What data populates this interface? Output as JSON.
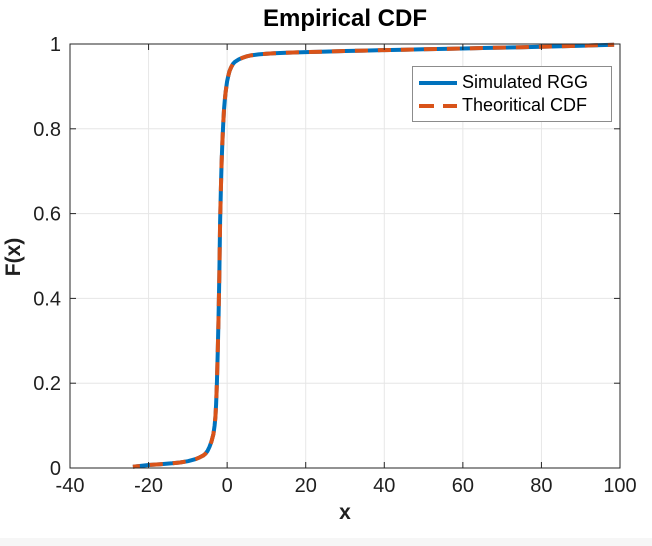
{
  "chart_data": {
    "type": "line",
    "title": "Empirical CDF",
    "xlabel": "x",
    "ylabel": "F(x)",
    "xlim": [
      -40,
      100
    ],
    "ylim": [
      0,
      1
    ],
    "x_ticks": [
      -40,
      -20,
      0,
      20,
      40,
      60,
      80,
      100
    ],
    "y_ticks": [
      0,
      0.2,
      0.4,
      0.6,
      0.8,
      1
    ],
    "grid": true,
    "legend_position": "upper right",
    "colors": {
      "axis": "#262626",
      "grid": "#e6e6e6",
      "tick_label": "#1f1f1f"
    },
    "series": [
      {
        "name": "Simulated RGG",
        "color": "#0072BD",
        "style": "solid",
        "x": [
          -24,
          -22,
          -20,
          -17,
          -14,
          -12,
          -10,
          -8,
          -7,
          -6,
          -5.5,
          -5,
          -4.5,
          -4,
          -3.5,
          -3.2,
          -3,
          -2.8,
          -2.6,
          -2.4,
          -2.2,
          -2,
          -1.8,
          -1.6,
          -1.4,
          -1.2,
          -1,
          -0.8,
          -0.6,
          -0.4,
          -0.2,
          0,
          0.3,
          0.6,
          1,
          1.5,
          2,
          3,
          4,
          5,
          6,
          8,
          10,
          12,
          15,
          20,
          25,
          30,
          35,
          40,
          45,
          50,
          55,
          60,
          65,
          70,
          75,
          80,
          85,
          90,
          95,
          98.5
        ],
        "y": [
          0.003,
          0.005,
          0.007,
          0.009,
          0.011,
          0.013,
          0.016,
          0.021,
          0.025,
          0.03,
          0.034,
          0.04,
          0.05,
          0.062,
          0.08,
          0.1,
          0.12,
          0.15,
          0.2,
          0.27,
          0.35,
          0.45,
          0.58,
          0.66,
          0.72,
          0.77,
          0.81,
          0.845,
          0.868,
          0.886,
          0.9,
          0.912,
          0.925,
          0.936,
          0.945,
          0.953,
          0.958,
          0.964,
          0.968,
          0.971,
          0.973,
          0.9755,
          0.977,
          0.978,
          0.9795,
          0.981,
          0.982,
          0.9835,
          0.9845,
          0.9855,
          0.9865,
          0.9875,
          0.9885,
          0.9895,
          0.9905,
          0.9915,
          0.9925,
          0.9935,
          0.9945,
          0.996,
          0.9975,
          0.998
        ]
      },
      {
        "name": "Theoritical CDF",
        "color": "#D95319",
        "style": "dashed",
        "x": [
          -24,
          -22,
          -20,
          -17,
          -14,
          -12,
          -10,
          -8,
          -7,
          -6,
          -5.5,
          -5,
          -4.5,
          -4,
          -3.5,
          -3.2,
          -3,
          -2.8,
          -2.6,
          -2.4,
          -2.2,
          -2,
          -1.8,
          -1.6,
          -1.4,
          -1.2,
          -1,
          -0.8,
          -0.6,
          -0.4,
          -0.2,
          0,
          0.3,
          0.6,
          1,
          1.5,
          2,
          3,
          4,
          5,
          6,
          8,
          10,
          12,
          15,
          20,
          25,
          30,
          35,
          40,
          45,
          50,
          55,
          60,
          65,
          70,
          75,
          80,
          85,
          90,
          95,
          98.5
        ],
        "y": [
          0.003,
          0.005,
          0.007,
          0.009,
          0.011,
          0.013,
          0.016,
          0.021,
          0.025,
          0.03,
          0.034,
          0.04,
          0.05,
          0.062,
          0.08,
          0.1,
          0.12,
          0.15,
          0.2,
          0.27,
          0.35,
          0.45,
          0.58,
          0.66,
          0.72,
          0.77,
          0.81,
          0.845,
          0.868,
          0.886,
          0.9,
          0.912,
          0.925,
          0.936,
          0.945,
          0.953,
          0.958,
          0.964,
          0.968,
          0.971,
          0.973,
          0.9755,
          0.977,
          0.978,
          0.9795,
          0.981,
          0.982,
          0.9835,
          0.9845,
          0.9855,
          0.9865,
          0.9875,
          0.9885,
          0.9895,
          0.9905,
          0.9915,
          0.9925,
          0.9935,
          0.9945,
          0.996,
          0.9975,
          0.998
        ]
      }
    ]
  }
}
